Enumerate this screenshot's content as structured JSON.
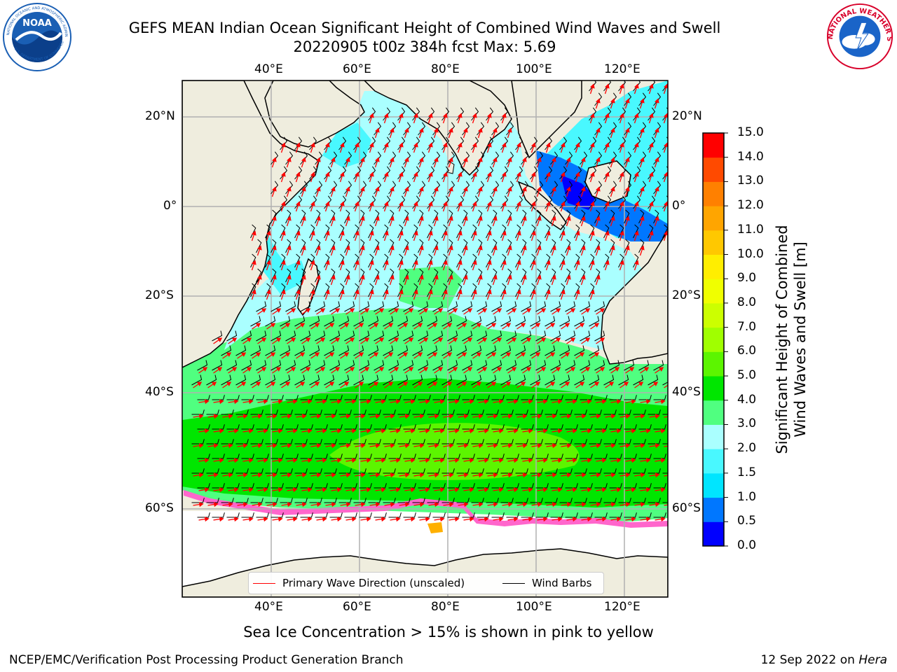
{
  "title": {
    "line1": "GEFS MEAN Indian Ocean Significant Height of Combined Wind Waves and Swell",
    "line2": "20220905 t00z 384h fcst   Max: 5.69"
  },
  "logos": {
    "left": {
      "name": "NOAA",
      "ring_text": "NATIONAL OCEANIC AND ATMOSPHERIC ADMINISTRATION · U.S. DEPARTMENT OF COMMERCE",
      "color": "#1a5fb4"
    },
    "right": {
      "name": "NATIONAL WEATHER SERVICE",
      "color": "#d8002a"
    }
  },
  "map": {
    "lon_ticks_top": [
      "40°E",
      "60°E",
      "80°E",
      "100°E",
      "120°E"
    ],
    "lon_ticks_bottom": [
      "40°E",
      "60°E",
      "80°E",
      "100°E",
      "120°E"
    ],
    "lat_ticks_left": [
      "20°N",
      "0°",
      "20°S",
      "40°S",
      "60°S"
    ],
    "lat_ticks_right": [
      "20°N",
      "0°",
      "20°S",
      "40°S",
      "60°S"
    ],
    "land_color": "#efedde",
    "barb_color": "#000000",
    "wave_arrow_color": "#ff0000"
  },
  "legend": {
    "wave_label": "Primary Wave Direction (unscaled)",
    "barb_label": "Wind Barbs"
  },
  "colorbar": {
    "title_line1": "Significant Height of Combined",
    "title_line2": "Wind Waves and Swell [m]",
    "ticks": [
      "0.0",
      "0.5",
      "1.0",
      "1.5",
      "2.0",
      "3.0",
      "4.0",
      "5.0",
      "6.0",
      "7.0",
      "8.0",
      "9.0",
      "10.0",
      "11.0",
      "12.0",
      "13.0",
      "14.0",
      "15.0"
    ],
    "colors": [
      "#0000ff",
      "#0077ff",
      "#00e5ff",
      "#49f8ff",
      "#aaffff",
      "#50ff80",
      "#00e600",
      "#5cf500",
      "#a0ff00",
      "#ccff00",
      "#f0ff00",
      "#ffee00",
      "#ffc800",
      "#ffa500",
      "#ff8000",
      "#ff4a00",
      "#ff0000"
    ]
  },
  "caption": "Sea Ice Concentration > 15% is shown in pink to yellow",
  "footer": {
    "left": "NCEP/EMC/Verification Post Processing Product Generation Branch",
    "right_prefix": "12 Sep 2022 on ",
    "right_host": "Hera"
  }
}
